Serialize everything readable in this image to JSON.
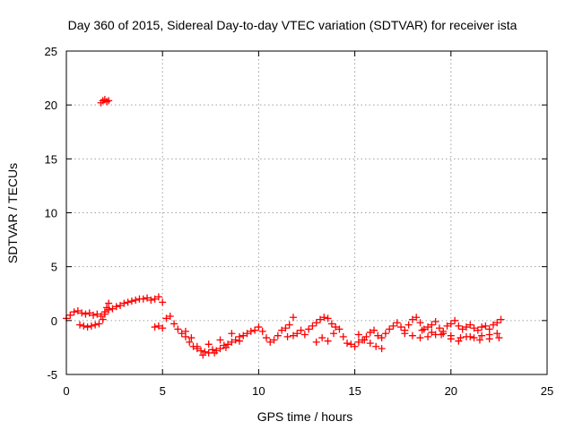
{
  "chart_data": {
    "type": "scatter",
    "title": "Day 360 of 2015, Sidereal Day-to-day VTEC variation (SDTVAR) for receiver ista",
    "xlabel": "GPS time / hours",
    "ylabel": "SDTVAR / TECUs",
    "xlim": [
      0,
      25
    ],
    "ylim": [
      -5,
      25
    ],
    "x_ticks": [
      "0",
      "5",
      "10",
      "15",
      "20",
      "25"
    ],
    "y_ticks": [
      "-5",
      "0",
      "5",
      "10",
      "15",
      "20",
      "25"
    ],
    "grid": true,
    "marker": "plus",
    "color": "#ff0000",
    "series": [
      {
        "name": "SDTVAR",
        "x": [
          0.0,
          0.2,
          0.4,
          0.6,
          0.8,
          1.0,
          1.2,
          1.4,
          1.6,
          1.8,
          2.0,
          2.2,
          2.4,
          2.6,
          2.8,
          3.0,
          3.2,
          3.4,
          3.6,
          3.8,
          4.0,
          4.2,
          4.4,
          4.6,
          4.8,
          5.0,
          0.7,
          0.9,
          1.1,
          1.3,
          1.5,
          1.7,
          1.9,
          2.0,
          2.1,
          2.2,
          4.6,
          4.8,
          5.0,
          5.2,
          5.4,
          5.6,
          5.8,
          6.0,
          6.2,
          6.4,
          6.6,
          6.8,
          7.0,
          7.2,
          7.4,
          7.6,
          7.8,
          8.0,
          8.2,
          8.4,
          8.6,
          8.8,
          9.0,
          9.2,
          9.4,
          9.6,
          9.8,
          10.0,
          6.2,
          6.5,
          6.8,
          7.1,
          7.4,
          7.7,
          8.0,
          8.3,
          8.6,
          9.0,
          10.2,
          10.4,
          10.6,
          10.8,
          11.0,
          11.2,
          11.4,
          11.6,
          11.8,
          11.5,
          11.8,
          12.0,
          12.2,
          12.4,
          12.6,
          12.8,
          13.0,
          13.2,
          13.4,
          13.6,
          13.8,
          14.0,
          13.0,
          13.3,
          13.6,
          13.9,
          14.2,
          14.4,
          14.6,
          14.8,
          15.0,
          15.2,
          15.4,
          15.6,
          15.8,
          16.0,
          16.2,
          16.4,
          16.6,
          16.8,
          15.2,
          15.5,
          15.8,
          16.1,
          16.4,
          17.0,
          17.2,
          17.4,
          17.6,
          17.8,
          18.0,
          18.2,
          18.4,
          18.6,
          18.8,
          19.0,
          19.2,
          19.4,
          19.6,
          19.8,
          20.0,
          20.2,
          20.4,
          20.6,
          20.8,
          21.0,
          21.2,
          21.4,
          21.6,
          21.8,
          22.0,
          22.2,
          22.4,
          22.6,
          17.6,
          18.0,
          18.4,
          18.8,
          19.2,
          19.6,
          20.0,
          20.4,
          20.8,
          21.2,
          21.6,
          22.0,
          22.4,
          18.5,
          19.0,
          19.5,
          20.0,
          20.5,
          21.0,
          21.5,
          22.0,
          22.5,
          1.8,
          1.9,
          2.0,
          2.1,
          2.2
        ],
        "y": [
          0.2,
          0.5,
          0.8,
          0.9,
          0.7,
          0.6,
          0.7,
          0.5,
          0.6,
          0.4,
          0.8,
          1.0,
          1.1,
          1.3,
          1.4,
          1.6,
          1.7,
          1.8,
          1.9,
          2.0,
          2.0,
          2.1,
          1.9,
          2.0,
          2.2,
          1.7,
          -0.4,
          -0.5,
          -0.6,
          -0.5,
          -0.4,
          -0.3,
          0.1,
          0.6,
          1.2,
          1.6,
          -0.6,
          -0.5,
          -0.7,
          0.2,
          0.4,
          -0.3,
          -0.8,
          -1.2,
          -1.5,
          -2.0,
          -2.4,
          -2.6,
          -2.8,
          -2.9,
          -3.0,
          -2.7,
          -2.8,
          -2.6,
          -2.3,
          -2.2,
          -2.0,
          -1.8,
          -1.5,
          -1.4,
          -1.2,
          -1.0,
          -0.9,
          -0.6,
          -1.0,
          -1.6,
          -2.4,
          -3.2,
          -2.2,
          -3.0,
          -1.8,
          -2.5,
          -1.2,
          -1.9,
          -1.0,
          -1.6,
          -2.0,
          -1.8,
          -1.4,
          -0.9,
          -0.7,
          -0.4,
          0.3,
          -1.5,
          -1.4,
          -1.2,
          -0.9,
          -1.3,
          -0.8,
          -0.5,
          -0.2,
          0.1,
          0.3,
          0.2,
          -0.3,
          -0.6,
          -2.0,
          -1.6,
          -1.9,
          -1.2,
          -0.8,
          -1.5,
          -2.1,
          -2.2,
          -2.4,
          -2.0,
          -1.8,
          -1.5,
          -1.1,
          -0.9,
          -1.4,
          -1.6,
          -1.2,
          -0.8,
          -1.3,
          -1.8,
          -2.1,
          -2.4,
          -2.6,
          -0.5,
          -0.2,
          -0.6,
          -0.9,
          -0.4,
          0.1,
          0.3,
          -0.2,
          -0.8,
          -0.6,
          -0.4,
          -0.1,
          -0.7,
          -1.0,
          -0.5,
          -0.3,
          0.0,
          -0.5,
          -0.8,
          -0.6,
          -0.4,
          -0.7,
          -0.9,
          -0.6,
          -0.5,
          -0.8,
          -0.4,
          -0.2,
          0.1,
          -1.2,
          -1.4,
          -1.6,
          -1.5,
          -1.3,
          -1.2,
          -1.7,
          -1.9,
          -1.5,
          -1.6,
          -1.4,
          -1.3,
          -1.2,
          -0.9,
          -1.1,
          -1.3,
          -1.4,
          -1.6,
          -1.5,
          -1.8,
          -1.7,
          -1.6,
          20.2,
          20.4,
          20.5,
          20.3,
          20.4
        ]
      }
    ]
  }
}
